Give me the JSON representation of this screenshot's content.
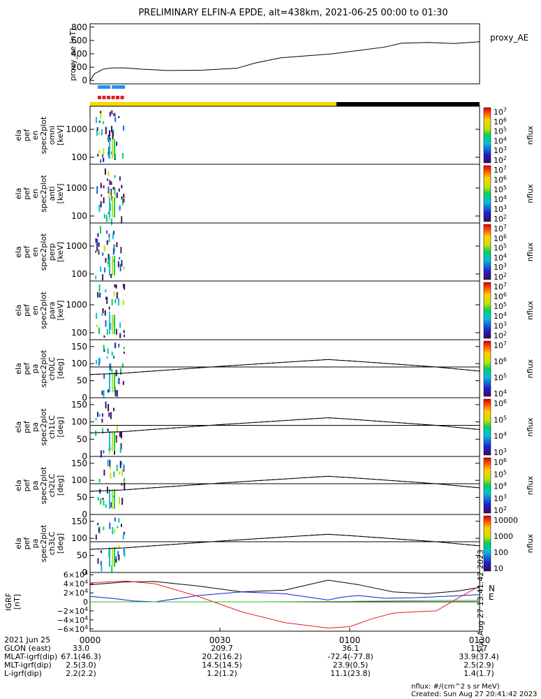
{
  "title": "PRELIMINARY ELFIN-A EPDE, alt=438km, 2021-06-25 00:00 to 01:30",
  "colors": {
    "quicklook_yellow": "#f5d800",
    "quicklook_black": "#000000",
    "science_blue": "#1e90ff",
    "science_red": "#e0201e"
  },
  "chart_data": [
    {
      "id": "proxy_ae",
      "type": "line",
      "ylabel": "proxy_ae [nT]",
      "legend": "proxy_AE",
      "ylim": [
        -50,
        850
      ],
      "yticks": [
        "0",
        "200",
        "400",
        "600",
        "800"
      ],
      "series": [
        {
          "name": "proxy_AE",
          "x": [
            0,
            1,
            3,
            5,
            8,
            12,
            18,
            26,
            34,
            38,
            44,
            50,
            56,
            62,
            68,
            72,
            78,
            84,
            90
          ],
          "y": [
            0,
            100,
            170,
            190,
            190,
            170,
            150,
            155,
            185,
            260,
            340,
            370,
            400,
            450,
            500,
            560,
            570,
            555,
            580
          ]
        }
      ]
    },
    {
      "id": "omni",
      "type": "heatmap",
      "ylabel": "ela pef en spec2plot omni [keV]",
      "yticks": [
        "100",
        "1000"
      ],
      "colorbar": {
        "label": "nflux",
        "ticks": [
          "10^2",
          "10^3",
          "10^4",
          "10^5",
          "10^6",
          "10^7"
        ]
      }
    },
    {
      "id": "anti",
      "type": "heatmap",
      "ylabel": "ela pef en spec2plot anti [keV]",
      "yticks": [
        "100",
        "1000"
      ],
      "colorbar": {
        "label": "nflux",
        "ticks": [
          "10^2",
          "10^3",
          "10^4",
          "10^5",
          "10^6",
          "10^7"
        ]
      }
    },
    {
      "id": "perp",
      "type": "heatmap",
      "ylabel": "ela pef en spec2plot perp [keV]",
      "yticks": [
        "100",
        "1000"
      ],
      "colorbar": {
        "label": "nflux",
        "ticks": [
          "10^2",
          "10^3",
          "10^4",
          "10^5",
          "10^6",
          "10^7"
        ]
      }
    },
    {
      "id": "para",
      "type": "heatmap",
      "ylabel": "ela pef en spec2plot para [keV]",
      "yticks": [
        "100",
        "1000"
      ],
      "colorbar": {
        "label": "nflux",
        "ticks": [
          "10^2",
          "10^3",
          "10^4",
          "10^5",
          "10^6",
          "10^7"
        ]
      }
    },
    {
      "id": "ch0LC",
      "type": "heatmap",
      "ylabel": "ela pef pa spec2plot ch0LC [deg]",
      "yticks": [
        "0",
        "50",
        "100",
        "150"
      ],
      "colorbar": {
        "label": "nflux",
        "ticks": [
          "10^4",
          "10^5",
          "10^6",
          "10^7"
        ]
      },
      "lc_solid": {
        "x": [
          0,
          4,
          8,
          12,
          20,
          30,
          40,
          50,
          55,
          60,
          70,
          80,
          90
        ],
        "y": [
          68,
          70,
          72,
          76,
          83,
          92,
          100,
          108,
          112,
          108,
          99,
          90,
          78
        ]
      },
      "lc_dashed": {
        "x": [
          0,
          4,
          8,
          12,
          20,
          30,
          40,
          50,
          55,
          60,
          70,
          80,
          90
        ],
        "y": [
          112,
          110,
          108,
          104,
          97,
          88,
          80,
          72,
          68,
          72,
          81,
          90,
          102
        ]
      }
    },
    {
      "id": "ch1LC",
      "type": "heatmap",
      "ylabel": "ela pef pa spec2plot ch1LC [deg]",
      "yticks": [
        "0",
        "50",
        "100",
        "150"
      ],
      "colorbar": {
        "label": "nflux",
        "ticks": [
          "10^3",
          "10^4",
          "10^5",
          "10^6"
        ]
      }
    },
    {
      "id": "ch2LC",
      "type": "heatmap",
      "ylabel": "ela pef pa spec2plot ch2LC [deg]",
      "yticks": [
        "0",
        "50",
        "100",
        "150"
      ],
      "colorbar": {
        "label": "nflux",
        "ticks": [
          "10^2",
          "10^3",
          "10^4",
          "10^5",
          "10^6"
        ]
      }
    },
    {
      "id": "ch3LC",
      "type": "heatmap",
      "ylabel": "ela pef pa spec2plot ch3LC [deg]",
      "yticks": [
        "0",
        "50",
        "100",
        "150"
      ],
      "colorbar": {
        "label": "nflux",
        "ticks": [
          "10",
          "100",
          "1000",
          "10000"
        ]
      }
    },
    {
      "id": "igrf",
      "type": "line",
      "ylabel": "IGRF [nT]",
      "ylim": [
        -65000,
        65000
      ],
      "yticks": [
        "6×10^4",
        "4×10^4",
        "2×10^4",
        "0",
        "−2×10^4",
        "−4×10^4",
        "−6×10^4"
      ],
      "legend": [
        "N",
        "E"
      ],
      "series": [
        {
          "name": "black",
          "color": "#000000",
          "x": [
            0,
            8,
            15,
            25,
            35,
            45,
            55,
            62,
            70,
            78,
            85,
            90
          ],
          "y": [
            38000,
            44000,
            45000,
            35000,
            22000,
            26000,
            48000,
            38000,
            22000,
            18000,
            24000,
            32000
          ]
        },
        {
          "name": "blue",
          "color": "#1a1ad8",
          "x": [
            0,
            5,
            10,
            15,
            25,
            35,
            45,
            55,
            58,
            62,
            68,
            75,
            82,
            90
          ],
          "y": [
            12000,
            8000,
            2000,
            0,
            14000,
            22000,
            18000,
            4000,
            10000,
            14000,
            8000,
            9000,
            12000,
            16000
          ]
        },
        {
          "name": "red",
          "color": "#e0201e",
          "x": [
            0,
            8,
            15,
            25,
            35,
            45,
            55,
            60,
            65,
            70,
            75,
            80,
            85,
            90
          ],
          "y": [
            42000,
            46000,
            40000,
            12000,
            -22000,
            -46000,
            -58000,
            -55000,
            -38000,
            -25000,
            -22000,
            -20000,
            8000,
            35000
          ]
        },
        {
          "name": "green",
          "color": "#1fbf1f",
          "x": [
            0,
            20,
            40,
            60,
            70,
            80,
            90
          ],
          "y": [
            0,
            0,
            0,
            1000,
            2000,
            3000,
            3000
          ]
        }
      ]
    }
  ],
  "xaxis": {
    "ticks": [
      "0000",
      "0030",
      "0100",
      "0130"
    ]
  },
  "footer": {
    "date": "2021 Jun 25",
    "rows": [
      {
        "label": "GLON (east)",
        "v": [
          "33.0",
          "209.7",
          "36.1",
          "11.7"
        ]
      },
      {
        "label": "MLAT-igrf(dip)",
        "v": [
          "67.1(46.3)",
          "20.2(16.2)",
          "-72.4(-77.8)",
          "33.9(37.4)"
        ]
      },
      {
        "label": "MLT-igrf(dip)",
        "v": [
          "2.5(3.0)",
          "14.5(14.5)",
          "23.9(0.5)",
          "2.5(2.9)"
        ]
      },
      {
        "label": "L-igrf(dip)",
        "v": [
          "2.2(2.2)",
          "1.2(1.2)",
          "11.1(23.8)",
          "1.4(1.7)"
        ]
      }
    ],
    "units": "nflux: #/(cm^2 s sr MeV)",
    "created": "Created: Sun Aug 27 20:41:42 2023",
    "side_stamp": "Sun Aug 27 13:41:42 2023"
  }
}
